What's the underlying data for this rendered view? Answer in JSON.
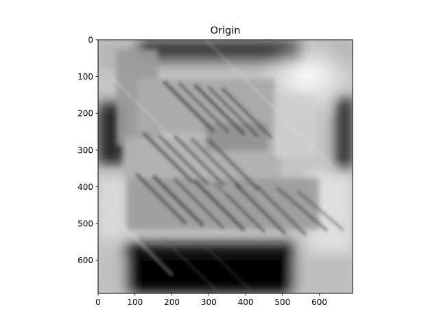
{
  "chart_data": {
    "type": "heatmap",
    "title": "Origin",
    "xlabel": "",
    "ylabel": "",
    "colormap": "gray",
    "image_content": "blurred grayscale photograph (motion-blurred text sign)",
    "x_range": [
      0,
      690
    ],
    "y_range": [
      0,
      690
    ],
    "y_axis_inverted": true,
    "grid": false,
    "x_ticks": [
      0,
      100,
      200,
      300,
      400,
      500,
      600
    ],
    "y_ticks": [
      0,
      100,
      200,
      300,
      400,
      500,
      600
    ],
    "x_tick_labels": [
      "0",
      "100",
      "200",
      "300",
      "400",
      "500",
      "600"
    ],
    "y_tick_labels": [
      "0",
      "100",
      "200",
      "300",
      "400",
      "500",
      "600"
    ]
  }
}
